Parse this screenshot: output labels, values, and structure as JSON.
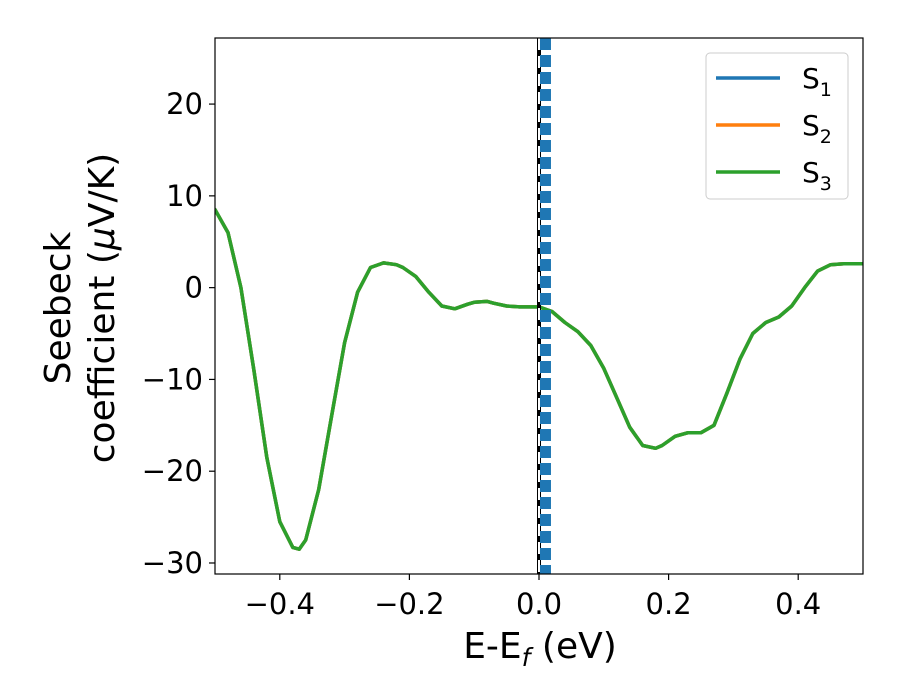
{
  "chart_data": {
    "type": "line",
    "xlabel": "E-E",
    "xlabel_subscript": "f",
    "xlabel_unit": " (eV)",
    "ylabel_line1": "Seebeck",
    "ylabel_line2_prefix": "coefficient  (",
    "ylabel_mu": "μ",
    "ylabel_line2_suffix": "V/K)",
    "xlim": [
      -0.5,
      0.5
    ],
    "ylim": [
      -31.2,
      27.2
    ],
    "x_ticks": [
      -0.4,
      -0.2,
      0.0,
      0.2,
      0.4
    ],
    "x_tick_labels": [
      "−0.4",
      "−0.2",
      "0.0",
      "0.2",
      "0.4"
    ],
    "y_ticks": [
      -30,
      -20,
      -10,
      0,
      10,
      20
    ],
    "y_tick_labels": [
      "−30",
      "−20",
      "−10",
      "0",
      "10",
      "20"
    ],
    "grid": false,
    "legend_position": "top-right",
    "vertical_lines": [
      {
        "x": 0.0,
        "color": "#000000",
        "style": "solid"
      },
      {
        "x": 0.0,
        "color": "#ffffff",
        "style": "dashed"
      },
      {
        "x": 0.01,
        "color": "#1f77b4",
        "style": "dashed"
      }
    ],
    "series": [
      {
        "name": "S",
        "sub": "1",
        "color": "#1f77b4"
      },
      {
        "name": "S",
        "sub": "2",
        "color": "#ff7f0e"
      },
      {
        "name": "S",
        "sub": "3",
        "color": "#2ca02c"
      }
    ],
    "x": [
      -0.5,
      -0.48,
      -0.46,
      -0.44,
      -0.42,
      -0.4,
      -0.38,
      -0.37,
      -0.36,
      -0.34,
      -0.32,
      -0.3,
      -0.28,
      -0.26,
      -0.24,
      -0.22,
      -0.21,
      -0.19,
      -0.17,
      -0.15,
      -0.13,
      -0.11,
      -0.1,
      -0.08,
      -0.07,
      -0.05,
      -0.03,
      -0.01,
      0.0,
      0.02,
      0.04,
      0.06,
      0.08,
      0.1,
      0.12,
      0.14,
      0.16,
      0.18,
      0.19,
      0.21,
      0.23,
      0.25,
      0.27,
      0.29,
      0.31,
      0.33,
      0.35,
      0.37,
      0.39,
      0.41,
      0.43,
      0.45,
      0.47,
      0.5
    ],
    "y": [
      8.5,
      6.0,
      0.0,
      -9.0,
      -18.5,
      -25.5,
      -28.3,
      -28.5,
      -27.5,
      -22.0,
      -14.0,
      -6.0,
      -0.5,
      2.2,
      2.7,
      2.5,
      2.2,
      1.2,
      -0.5,
      -2.0,
      -2.3,
      -1.8,
      -1.6,
      -1.5,
      -1.7,
      -2.0,
      -2.1,
      -2.1,
      -2.1,
      -2.6,
      -3.8,
      -4.8,
      -6.3,
      -8.8,
      -12.0,
      -15.2,
      -17.2,
      -17.5,
      -17.2,
      -16.2,
      -15.8,
      -15.8,
      -15.0,
      -11.5,
      -7.8,
      -5.0,
      -3.8,
      -3.2,
      -2.0,
      0.0,
      1.8,
      2.5,
      2.6,
      2.6
    ]
  }
}
